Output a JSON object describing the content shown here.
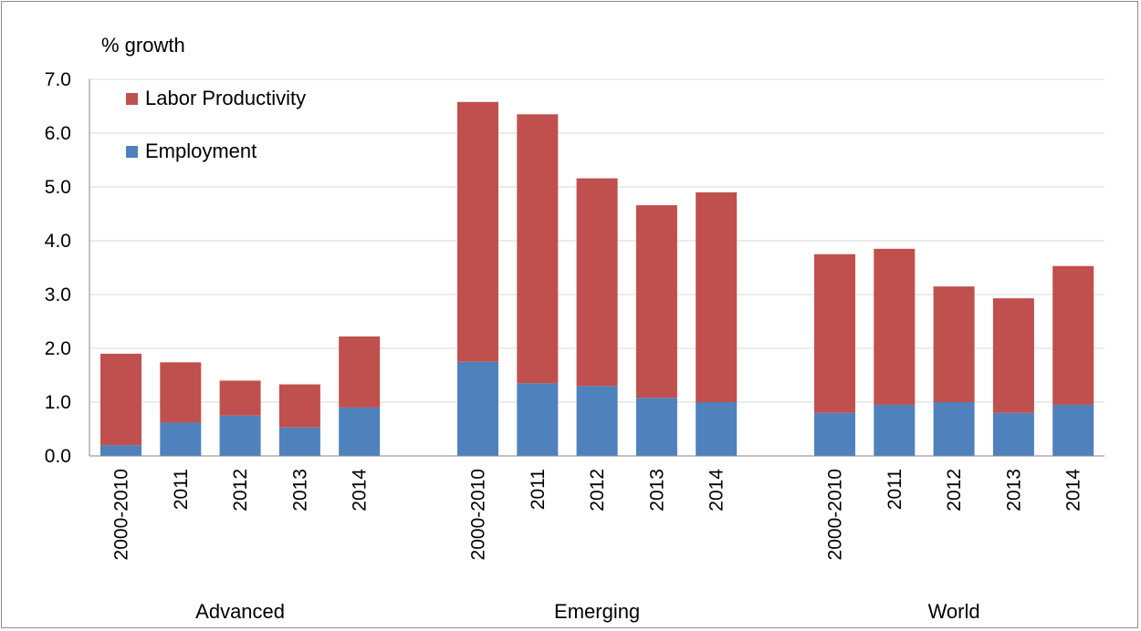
{
  "chart_data": {
    "type": "bar",
    "stacked": true,
    "ylabel": "% growth",
    "ylim": [
      0,
      7
    ],
    "yticks": [
      "0.0",
      "1.0",
      "2.0",
      "3.0",
      "4.0",
      "5.0",
      "6.0",
      "7.0"
    ],
    "grid": true,
    "legend_position": "top-left",
    "series": [
      {
        "name": "Employment",
        "color": "#4f81bd"
      },
      {
        "name": "Labor Productivity",
        "color": "#c0504d"
      }
    ],
    "groups": [
      {
        "name": "Advanced",
        "categories": [
          "2000-2010",
          "2011",
          "2012",
          "2013",
          "2014"
        ],
        "employment": [
          0.2,
          0.62,
          0.75,
          0.53,
          0.9
        ],
        "labor_productivity": [
          1.7,
          1.12,
          0.65,
          0.8,
          1.32
        ]
      },
      {
        "name": "Emerging",
        "categories": [
          "2000-2010",
          "2011",
          "2012",
          "2013",
          "2014"
        ],
        "employment": [
          1.75,
          1.35,
          1.3,
          1.08,
          1.0
        ],
        "labor_productivity": [
          4.83,
          5.0,
          3.86,
          3.58,
          3.9
        ]
      },
      {
        "name": "World",
        "categories": [
          "2000-2010",
          "2011",
          "2012",
          "2013",
          "2014"
        ],
        "employment": [
          0.8,
          0.95,
          1.0,
          0.8,
          0.95
        ],
        "labor_productivity": [
          2.95,
          2.9,
          2.15,
          2.13,
          2.58
        ]
      }
    ]
  }
}
